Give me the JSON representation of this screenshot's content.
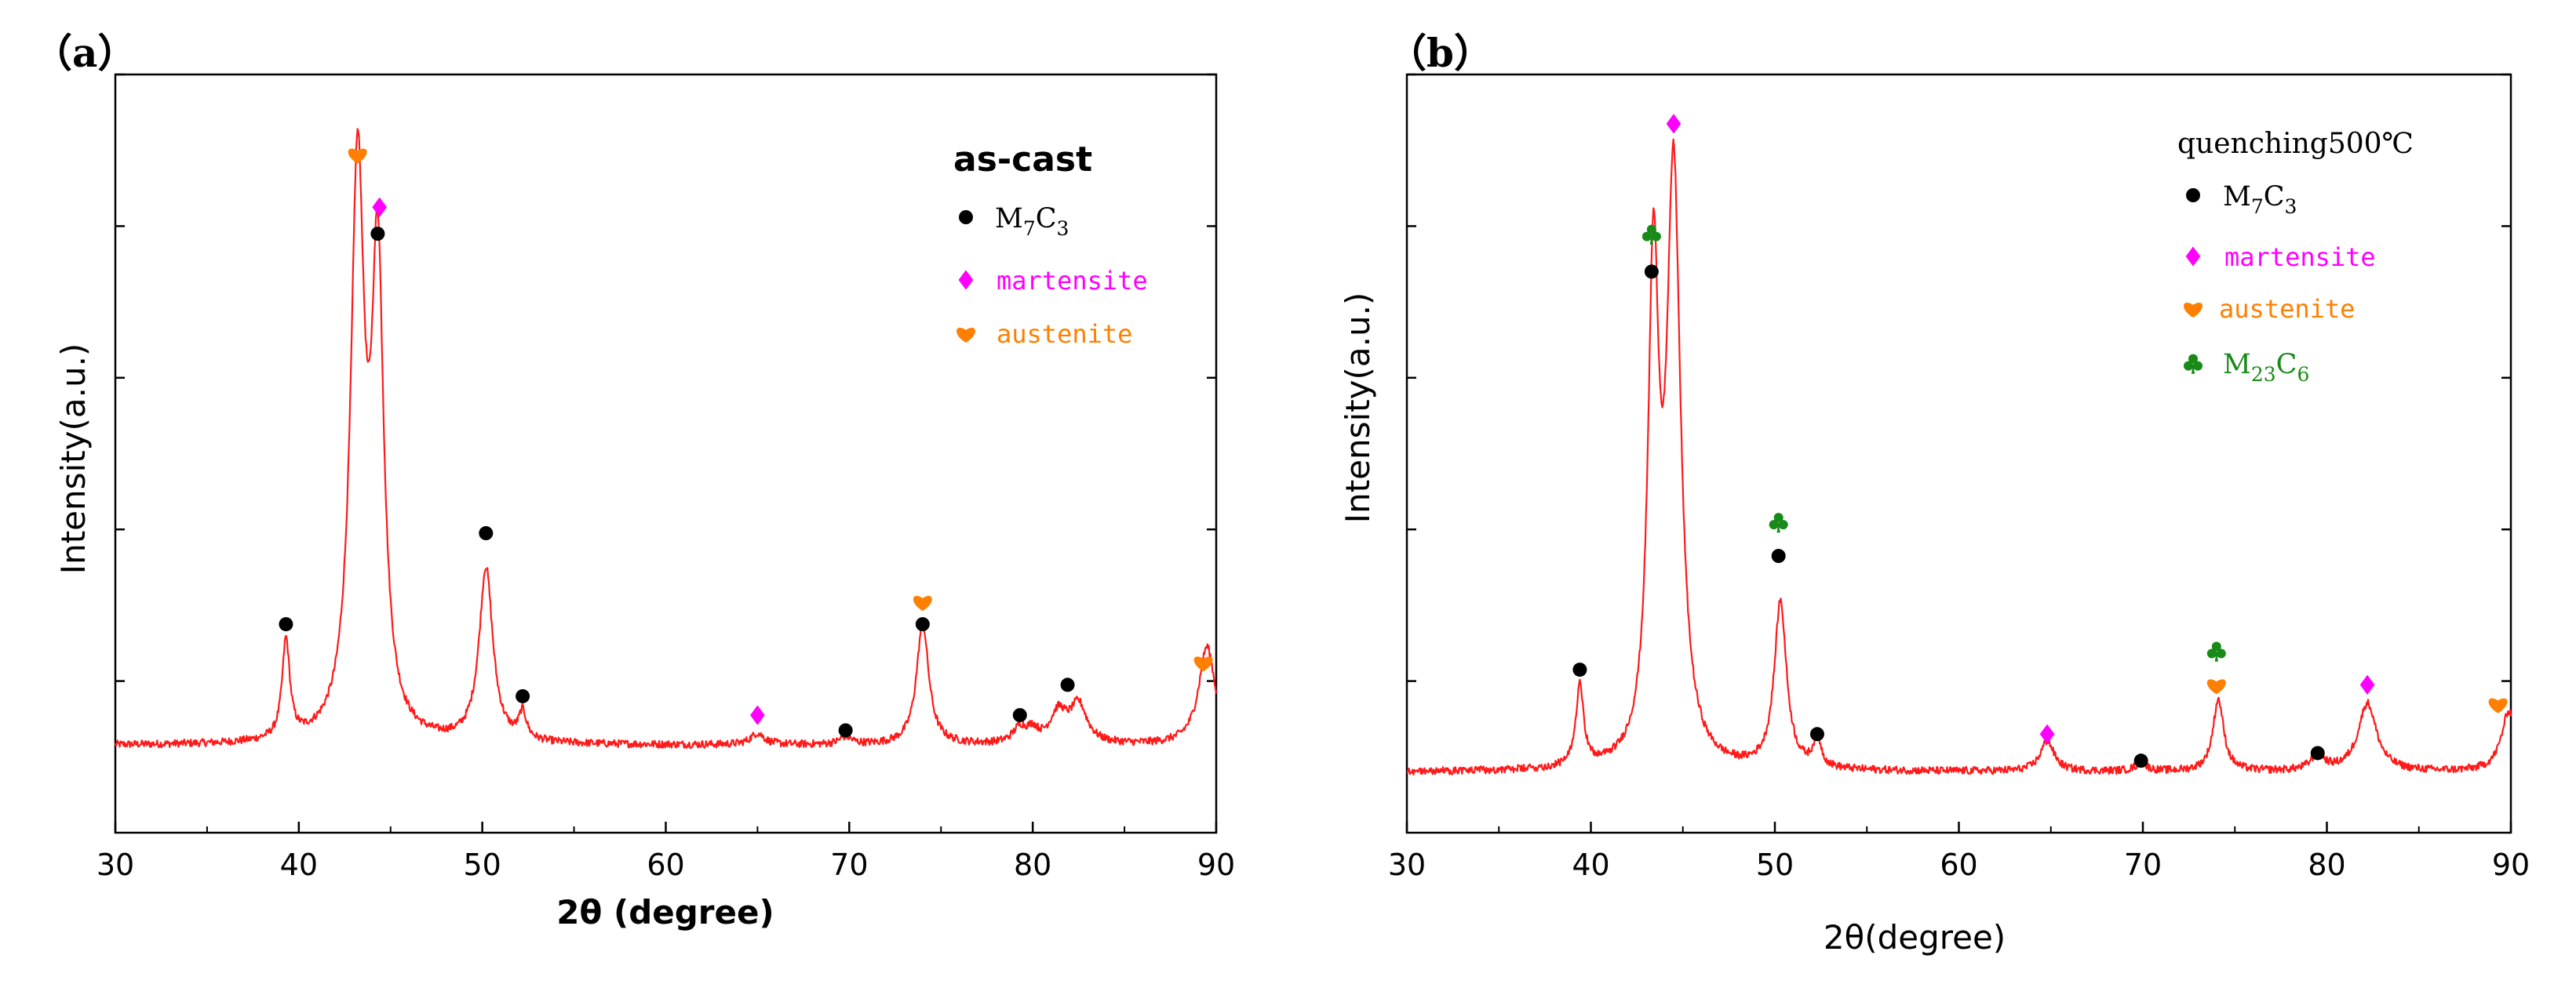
{
  "figure": {
    "panel_a_label": "（a）",
    "panel_b_label": "（b）"
  },
  "colors": {
    "trace": "#ff1a1a",
    "M7C3": "#000000",
    "martensite": "#ff00ff",
    "austenite": "#ff7f00",
    "M23C6": "#178a17"
  },
  "chart_data": [
    {
      "type": "line",
      "panel": "a",
      "title": "",
      "xlabel": "2θ (degree)",
      "ylabel": "Intensity(a.u.)",
      "xlim": [
        30,
        90
      ],
      "ylim": [
        0,
        100
      ],
      "xticks": [
        30,
        40,
        50,
        60,
        70,
        80,
        90
      ],
      "tick_labels": [
        "30",
        "40",
        "50",
        "60",
        "70",
        "80",
        "90"
      ],
      "legend": {
        "title": "as-cast",
        "placement": "top-right",
        "entries": [
          {
            "symbol": "circle",
            "phase": "M7C3",
            "parts": [
              "M",
              "7",
              "C",
              "3"
            ]
          },
          {
            "symbol": "diamond",
            "phase": "martensite",
            "label": "martensite"
          },
          {
            "symbol": "heart",
            "phase": "austenite",
            "label": "austenite"
          }
        ]
      },
      "baseline": 11.5,
      "noise": 0.5,
      "peaks": [
        {
          "x": 39.3,
          "h": 13,
          "w": 0.25
        },
        {
          "x": 43.2,
          "h": 74,
          "w": 0.45
        },
        {
          "x": 44.3,
          "h": 60,
          "w": 0.4
        },
        {
          "x": 50.2,
          "h": 23,
          "w": 0.45
        },
        {
          "x": 52.2,
          "h": 3.5,
          "w": 0.25
        },
        {
          "x": 65.0,
          "h": 1.5,
          "w": 0.45
        },
        {
          "x": 69.8,
          "h": 1,
          "w": 0.4
        },
        {
          "x": 74.0,
          "h": 16,
          "w": 0.4
        },
        {
          "x": 79.3,
          "h": 2,
          "w": 0.45
        },
        {
          "x": 80.0,
          "h": 1.5,
          "w": 0.35
        },
        {
          "x": 81.4,
          "h": 4,
          "w": 0.55
        },
        {
          "x": 82.5,
          "h": 5,
          "w": 0.55
        },
        {
          "x": 89.5,
          "h": 13,
          "w": 0.55
        }
      ],
      "markers": [
        {
          "x": 39.3,
          "y": 27.5,
          "phase": "M7C3"
        },
        {
          "x": 43.2,
          "y": 89.5,
          "phase": "austenite"
        },
        {
          "x": 44.4,
          "y": 82.5,
          "phase": "martensite"
        },
        {
          "x": 44.3,
          "y": 79,
          "phase": "M7C3"
        },
        {
          "x": 50.2,
          "y": 39.5,
          "phase": "M7C3"
        },
        {
          "x": 52.2,
          "y": 18,
          "phase": "M7C3"
        },
        {
          "x": 65.0,
          "y": 15.5,
          "phase": "martensite"
        },
        {
          "x": 69.8,
          "y": 13.5,
          "phase": "M7C3"
        },
        {
          "x": 74.0,
          "y": 30.5,
          "phase": "austenite"
        },
        {
          "x": 74.0,
          "y": 27.5,
          "phase": "M7C3"
        },
        {
          "x": 79.3,
          "y": 15.5,
          "phase": "M7C3"
        },
        {
          "x": 81.9,
          "y": 19.5,
          "phase": "M7C3"
        },
        {
          "x": 89.3,
          "y": 22.5,
          "phase": "austenite"
        }
      ]
    },
    {
      "type": "line",
      "panel": "b",
      "title": "",
      "xlabel": "2θ(degree)",
      "ylabel": "Intensity(a.u.)",
      "xlim": [
        30,
        90
      ],
      "ylim": [
        0,
        100
      ],
      "xticks": [
        30,
        40,
        50,
        60,
        70,
        80,
        90
      ],
      "tick_labels": [
        "30",
        "40",
        "50",
        "60",
        "70",
        "80",
        "90"
      ],
      "legend": {
        "title": "quenching500℃",
        "placement": "top-right",
        "entries": [
          {
            "symbol": "circle",
            "phase": "M7C3",
            "parts": [
              "M",
              "7",
              "C",
              "3"
            ]
          },
          {
            "symbol": "diamond",
            "phase": "martensite",
            "label": "martensite"
          },
          {
            "symbol": "heart",
            "phase": "austenite",
            "label": "austenite"
          },
          {
            "symbol": "club",
            "phase": "M23C6",
            "parts": [
              "M",
              "23",
              "C",
              "6"
            ]
          }
        ]
      },
      "baseline": 8,
      "noise": 0.5,
      "peaks": [
        {
          "x": 39.4,
          "h": 11,
          "w": 0.25
        },
        {
          "x": 43.4,
          "h": 63,
          "w": 0.35
        },
        {
          "x": 44.5,
          "h": 77,
          "w": 0.45
        },
        {
          "x": 50.3,
          "h": 22,
          "w": 0.4
        },
        {
          "x": 52.3,
          "h": 4,
          "w": 0.25
        },
        {
          "x": 64.8,
          "h": 4,
          "w": 0.45
        },
        {
          "x": 69.9,
          "h": 1,
          "w": 0.4
        },
        {
          "x": 74.1,
          "h": 9.5,
          "w": 0.35
        },
        {
          "x": 79.5,
          "h": 2,
          "w": 0.45
        },
        {
          "x": 82.2,
          "h": 9,
          "w": 0.6
        },
        {
          "x": 89.9,
          "h": 8,
          "w": 0.5
        }
      ],
      "markers": [
        {
          "x": 39.4,
          "y": 21.5,
          "phase": "M7C3"
        },
        {
          "x": 43.3,
          "y": 79,
          "phase": "M23C6"
        },
        {
          "x": 43.3,
          "y": 74,
          "phase": "M7C3"
        },
        {
          "x": 44.5,
          "y": 93.5,
          "phase": "martensite"
        },
        {
          "x": 50.2,
          "y": 41,
          "phase": "M23C6"
        },
        {
          "x": 50.2,
          "y": 36.5,
          "phase": "M7C3"
        },
        {
          "x": 52.3,
          "y": 13,
          "phase": "M7C3"
        },
        {
          "x": 64.8,
          "y": 13,
          "phase": "martensite"
        },
        {
          "x": 69.9,
          "y": 9.5,
          "phase": "M7C3"
        },
        {
          "x": 74.0,
          "y": 24,
          "phase": "M23C6"
        },
        {
          "x": 74.0,
          "y": 19.5,
          "phase": "austenite"
        },
        {
          "x": 79.5,
          "y": 10.5,
          "phase": "M7C3"
        },
        {
          "x": 82.2,
          "y": 19.5,
          "phase": "martensite"
        },
        {
          "x": 89.3,
          "y": 17,
          "phase": "austenite"
        }
      ]
    }
  ]
}
